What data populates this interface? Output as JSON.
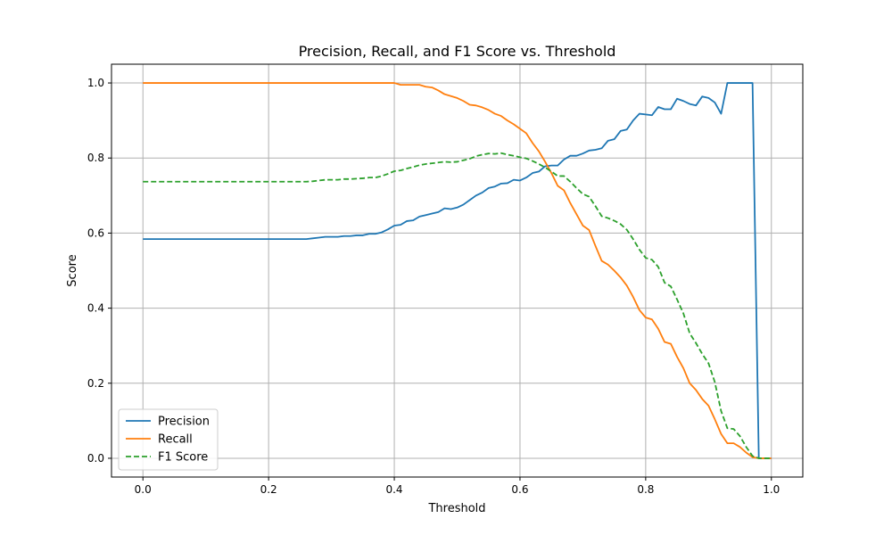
{
  "chart_data": {
    "type": "line",
    "title": "Precision, Recall, and F1 Score vs. Threshold",
    "xlabel": "Threshold",
    "ylabel": "Score",
    "xlim": [
      -0.05,
      1.05
    ],
    "ylim": [
      -0.05,
      1.05
    ],
    "xticks": [
      0.0,
      0.2,
      0.4,
      0.6,
      0.8,
      1.0
    ],
    "xtick_labels": [
      "0.0",
      "0.2",
      "0.4",
      "0.6",
      "0.8",
      "1.0"
    ],
    "yticks": [
      0.0,
      0.2,
      0.4,
      0.6,
      0.8,
      1.0
    ],
    "ytick_labels": [
      "0.0",
      "0.2",
      "0.4",
      "0.6",
      "0.8",
      "1.0"
    ],
    "grid": true,
    "legend_position": "lower-left",
    "x": [
      0.0,
      0.01,
      0.02,
      0.03,
      0.04,
      0.05,
      0.06,
      0.07,
      0.08,
      0.09,
      0.1,
      0.11,
      0.12,
      0.13,
      0.14,
      0.15,
      0.16,
      0.17,
      0.18,
      0.19,
      0.2,
      0.21,
      0.22,
      0.23,
      0.24,
      0.25,
      0.26,
      0.27,
      0.28,
      0.29,
      0.3,
      0.31,
      0.32,
      0.33,
      0.34,
      0.35,
      0.36,
      0.37,
      0.38,
      0.39,
      0.4,
      0.41,
      0.42,
      0.43,
      0.44,
      0.45,
      0.46,
      0.47,
      0.48,
      0.49,
      0.5,
      0.51,
      0.52,
      0.53,
      0.54,
      0.55,
      0.56,
      0.57,
      0.58,
      0.59,
      0.6,
      0.61,
      0.62,
      0.63,
      0.64,
      0.65,
      0.66,
      0.67,
      0.68,
      0.69,
      0.7,
      0.71,
      0.72,
      0.73,
      0.74,
      0.75,
      0.76,
      0.77,
      0.78,
      0.79,
      0.8,
      0.81,
      0.82,
      0.83,
      0.84,
      0.85,
      0.86,
      0.87,
      0.88,
      0.89,
      0.9,
      0.91,
      0.92,
      0.93,
      0.94,
      0.95,
      0.96,
      0.97,
      0.98,
      0.99,
      1.0
    ],
    "series": [
      {
        "name": "Precision",
        "color": "#1f77b4",
        "dash": "solid",
        "values": [
          0.584,
          0.584,
          0.584,
          0.584,
          0.584,
          0.584,
          0.584,
          0.584,
          0.584,
          0.584,
          0.584,
          0.584,
          0.584,
          0.584,
          0.584,
          0.584,
          0.584,
          0.584,
          0.584,
          0.584,
          0.584,
          0.584,
          0.584,
          0.584,
          0.584,
          0.584,
          0.584,
          0.586,
          0.588,
          0.59,
          0.59,
          0.59,
          0.592,
          0.592,
          0.594,
          0.594,
          0.598,
          0.598,
          0.602,
          0.61,
          0.62,
          0.622,
          0.632,
          0.634,
          0.644,
          0.648,
          0.652,
          0.656,
          0.666,
          0.664,
          0.668,
          0.676,
          0.688,
          0.7,
          0.708,
          0.72,
          0.724,
          0.732,
          0.733,
          0.742,
          0.74,
          0.748,
          0.76,
          0.764,
          0.778,
          0.78,
          0.78,
          0.796,
          0.806,
          0.806,
          0.812,
          0.82,
          0.822,
          0.826,
          0.846,
          0.85,
          0.872,
          0.876,
          0.9,
          0.918,
          0.916,
          0.914,
          0.936,
          0.93,
          0.93,
          0.958,
          0.952,
          0.944,
          0.94,
          0.964,
          0.96,
          0.948,
          0.918,
          1.0,
          1.0,
          1.0,
          1.0,
          1.0,
          0.0,
          0.0,
          0.0
        ]
      },
      {
        "name": "Recall",
        "color": "#ff7f0e",
        "dash": "solid",
        "values": [
          1.0,
          1.0,
          1.0,
          1.0,
          1.0,
          1.0,
          1.0,
          1.0,
          1.0,
          1.0,
          1.0,
          1.0,
          1.0,
          1.0,
          1.0,
          1.0,
          1.0,
          1.0,
          1.0,
          1.0,
          1.0,
          1.0,
          1.0,
          1.0,
          1.0,
          1.0,
          1.0,
          1.0,
          1.0,
          1.0,
          1.0,
          1.0,
          1.0,
          1.0,
          1.0,
          1.0,
          1.0,
          1.0,
          1.0,
          1.0,
          1.0,
          0.995,
          0.995,
          0.995,
          0.995,
          0.99,
          0.988,
          0.98,
          0.97,
          0.965,
          0.96,
          0.952,
          0.942,
          0.94,
          0.935,
          0.928,
          0.918,
          0.912,
          0.9,
          0.89,
          0.878,
          0.866,
          0.84,
          0.818,
          0.79,
          0.76,
          0.726,
          0.714,
          0.68,
          0.65,
          0.62,
          0.608,
          0.566,
          0.526,
          0.516,
          0.5,
          0.482,
          0.46,
          0.43,
          0.395,
          0.375,
          0.37,
          0.345,
          0.31,
          0.305,
          0.27,
          0.24,
          0.2,
          0.182,
          0.158,
          0.14,
          0.104,
          0.065,
          0.04,
          0.04,
          0.03,
          0.015,
          0.003,
          0.0,
          0.0,
          0.0
        ]
      },
      {
        "name": "F1 Score",
        "color": "#2ca02c",
        "dash": "dashed",
        "values": [
          0.737,
          0.737,
          0.737,
          0.737,
          0.737,
          0.737,
          0.737,
          0.737,
          0.737,
          0.737,
          0.737,
          0.737,
          0.737,
          0.737,
          0.737,
          0.737,
          0.737,
          0.737,
          0.737,
          0.737,
          0.737,
          0.737,
          0.737,
          0.737,
          0.737,
          0.737,
          0.737,
          0.738,
          0.74,
          0.742,
          0.742,
          0.742,
          0.744,
          0.744,
          0.745,
          0.746,
          0.748,
          0.748,
          0.752,
          0.758,
          0.765,
          0.767,
          0.772,
          0.776,
          0.781,
          0.784,
          0.786,
          0.788,
          0.79,
          0.789,
          0.79,
          0.794,
          0.798,
          0.805,
          0.809,
          0.812,
          0.811,
          0.813,
          0.809,
          0.806,
          0.802,
          0.799,
          0.792,
          0.784,
          0.775,
          0.764,
          0.752,
          0.752,
          0.737,
          0.72,
          0.704,
          0.697,
          0.672,
          0.645,
          0.64,
          0.633,
          0.624,
          0.609,
          0.584,
          0.556,
          0.534,
          0.529,
          0.51,
          0.468,
          0.458,
          0.423,
          0.386,
          0.333,
          0.307,
          0.278,
          0.253,
          0.203,
          0.126,
          0.08,
          0.078,
          0.059,
          0.03,
          0.006,
          0.0,
          0.0,
          0.0
        ]
      }
    ]
  }
}
